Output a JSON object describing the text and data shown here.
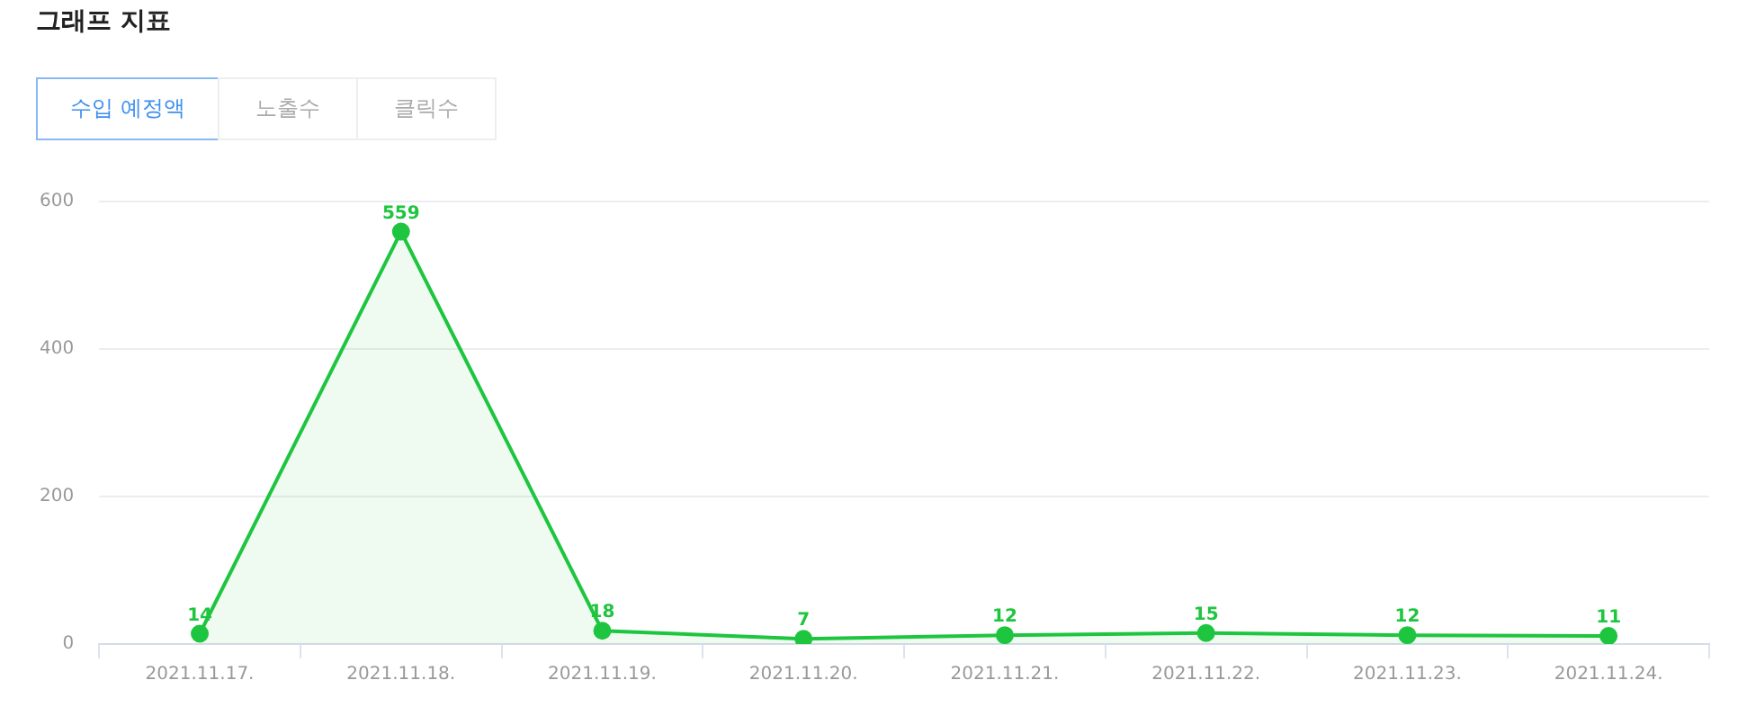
{
  "chart_data": {
    "type": "area",
    "title": "그래프 지표",
    "annotations": [
      "수입 예정액",
      "노출수",
      "클릭수"
    ],
    "categories": [
      "2021.11.17.",
      "2021.11.18.",
      "2021.11.19.",
      "2021.11.20.",
      "2021.11.21.",
      "2021.11.22.",
      "2021.11.23.",
      "2021.11.24."
    ],
    "series": [
      {
        "color": "#1ec53f",
        "values": [
          14,
          559,
          18,
          7,
          12,
          15,
          12,
          11
        ]
      }
    ],
    "ylim": [
      0,
      600
    ],
    "yticks": [
      0,
      200,
      400,
      600
    ],
    "grid": "y",
    "marker": "circle",
    "data_labels": true,
    "legend": false
  }
}
